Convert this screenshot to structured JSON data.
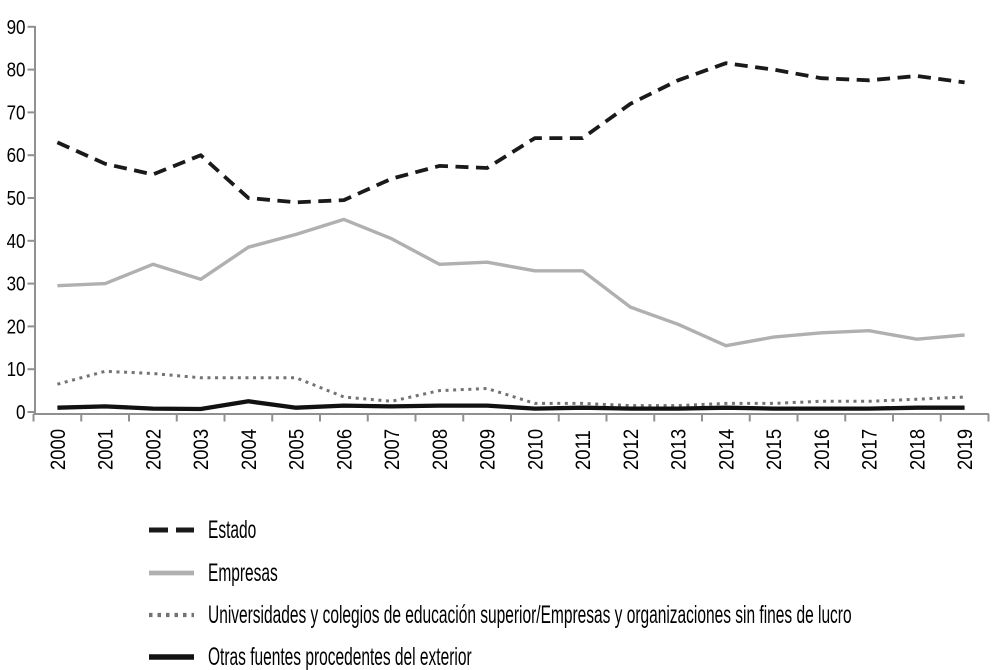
{
  "chart_data": {
    "type": "line",
    "title": "",
    "xlabel": "",
    "ylabel": "",
    "ylim": [
      0,
      90
    ],
    "y_ticks": [
      0,
      10,
      20,
      30,
      40,
      50,
      60,
      70,
      80,
      90
    ],
    "grid": false,
    "legend_position": "bottom-left",
    "axis_color": "#909090",
    "text_color": "#000000",
    "background_color": "#ffffff",
    "categories": [
      "2000",
      "2001",
      "2002",
      "2003",
      "2004",
      "2005",
      "2006",
      "2007",
      "2008",
      "2009",
      "2010",
      "2011",
      "2012",
      "2013",
      "2014",
      "2015",
      "2016",
      "2017",
      "2018",
      "2019"
    ],
    "series": [
      {
        "name": "Estado",
        "style": "dashed",
        "color": "#1a1a1a",
        "stroke_width": 3.8,
        "values": [
          63,
          58,
          55.5,
          60,
          50,
          49,
          49.5,
          54.5,
          57.5,
          57,
          64,
          64,
          72,
          77.5,
          81.5,
          80,
          78,
          77.5,
          78.5,
          77
        ]
      },
      {
        "name": "Empresas",
        "style": "solid",
        "color": "#b0b0b0",
        "stroke_width": 3.4,
        "values": [
          29.5,
          30,
          34.5,
          31,
          38.5,
          41.5,
          45,
          40.5,
          34.5,
          35,
          33,
          33,
          24.5,
          20.5,
          15.5,
          17.5,
          18.5,
          19,
          17,
          18
        ]
      },
      {
        "name": "Universidades y colegios de educación superior/Empresas y organizaciones sin fines de lucro",
        "style": "dotted",
        "color": "#737373",
        "stroke_width": 3,
        "values": [
          6.5,
          9.5,
          9,
          8,
          8,
          8,
          3.5,
          2.5,
          5,
          5.5,
          2,
          2,
          1.5,
          1.5,
          2,
          2,
          2.5,
          2.5,
          3,
          3.5
        ]
      },
      {
        "name": "Otras fuentes procedentes del exterior",
        "style": "solid",
        "color": "#111111",
        "stroke_width": 4.3,
        "values": [
          1,
          1.3,
          0.8,
          0.7,
          2.5,
          1,
          1.5,
          1.3,
          1.5,
          1.5,
          0.8,
          1,
          0.8,
          0.8,
          1,
          0.8,
          0.8,
          0.8,
          1,
          1
        ]
      }
    ]
  }
}
